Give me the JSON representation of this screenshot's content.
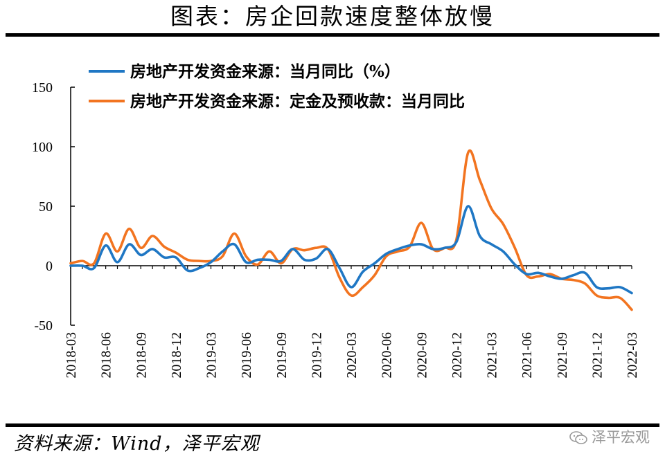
{
  "title": "图表：房企回款速度整体放慢",
  "source": "资料来源：Wind，泽平宏观",
  "watermark": "泽平宏观",
  "watermark_icon": "wechat-icon",
  "colors": {
    "series1": "#1f77c4",
    "series2": "#f27420",
    "axis": "#000000",
    "watermark": "#9a9a9a"
  },
  "chart_data": {
    "type": "line",
    "title": "",
    "xlabel": "",
    "ylabel": "",
    "ylim": [
      -50,
      150
    ],
    "yticks": [
      -50,
      0,
      50,
      100,
      150
    ],
    "grid": false,
    "legend_position": "top-left",
    "xtick_labels": [
      "2018-03",
      "2018-06",
      "2018-09",
      "2018-12",
      "2019-03",
      "2019-06",
      "2019-09",
      "2019-12",
      "2020-03",
      "2020-06",
      "2020-09",
      "2020-12",
      "2021-03",
      "2021-06",
      "2021-09",
      "2021-12",
      "2022-03"
    ],
    "x": [
      "2018-03",
      "2018-04",
      "2018-05",
      "2018-06",
      "2018-07",
      "2018-08",
      "2018-09",
      "2018-10",
      "2018-11",
      "2018-12",
      "2019-01",
      "2019-02",
      "2019-03",
      "2019-04",
      "2019-05",
      "2019-06",
      "2019-07",
      "2019-08",
      "2019-09",
      "2019-10",
      "2019-11",
      "2019-12",
      "2020-01",
      "2020-02",
      "2020-03",
      "2020-04",
      "2020-05",
      "2020-06",
      "2020-07",
      "2020-08",
      "2020-09",
      "2020-10",
      "2020-11",
      "2020-12",
      "2021-01",
      "2021-02",
      "2021-03",
      "2021-04",
      "2021-05",
      "2021-06",
      "2021-07",
      "2021-08",
      "2021-09",
      "2021-10",
      "2021-11",
      "2021-12",
      "2022-01",
      "2022-02",
      "2022-03"
    ],
    "series": [
      {
        "name": "房地产开发资金来源：当月同比（%）",
        "values": [
          0,
          0,
          -2,
          17,
          3,
          18,
          9,
          14,
          7,
          7,
          -4,
          -2,
          3,
          12,
          18,
          3,
          5,
          5,
          4,
          14,
          5,
          6,
          14,
          -2,
          -18,
          -5,
          2,
          10,
          14,
          17,
          18,
          14,
          15,
          20,
          50,
          25,
          18,
          12,
          1,
          -7,
          -6,
          -9,
          -11,
          -8,
          -6,
          -18,
          -19,
          -18,
          -23
        ]
      },
      {
        "name": "房地产开发资金来源：定金及预收款：当月同比",
        "values": [
          2,
          4,
          2,
          27,
          12,
          31,
          15,
          25,
          16,
          11,
          5,
          4,
          4,
          8,
          27,
          8,
          1,
          12,
          2,
          14,
          13,
          15,
          14,
          -10,
          -25,
          -18,
          -8,
          8,
          12,
          16,
          36,
          14,
          15,
          22,
          95,
          72,
          48,
          35,
          15,
          -8,
          -9,
          -7,
          -11,
          -12,
          -15,
          -25,
          -27,
          -27,
          -37
        ]
      }
    ]
  }
}
